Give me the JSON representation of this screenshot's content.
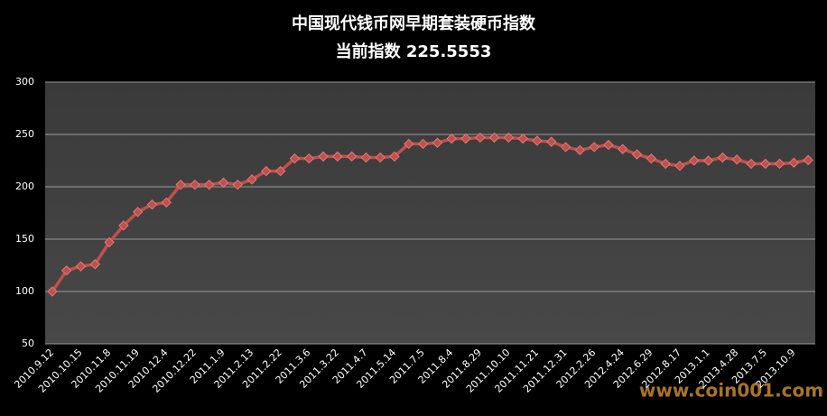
{
  "chart_data": {
    "type": "line",
    "title": "中国现代钱币网早期套装硬币指数",
    "subtitle": "当前指数 225.5553",
    "watermark": "www.coin001.com",
    "categories": [
      "2010.9.12",
      null,
      "2010.10.15",
      null,
      "2010.11.8",
      null,
      "2010.11.19",
      null,
      "2010.12.4",
      null,
      "2010.12.22",
      null,
      "2011.1.9",
      null,
      "2011.2.13",
      null,
      "2011.2.22",
      null,
      "2011.3.6",
      null,
      "2011.3.22",
      null,
      "2011.4.7",
      null,
      "2011.5.14",
      null,
      "2011.7.5",
      null,
      "2011.8.4",
      null,
      "2011.8.29",
      null,
      "2011.10.10",
      null,
      "2011.11.21",
      null,
      "2011.12.31",
      null,
      "2012.2.26",
      null,
      "2012.4.24",
      null,
      "2012.6.29",
      null,
      "2012.8.17",
      null,
      "2013.1.1",
      null,
      "2013.4.28",
      null,
      "2013.7.5",
      null,
      "2013.10.9",
      null
    ],
    "series": [
      {
        "name": "指数",
        "color": "#c0504d",
        "values": [
          100,
          120,
          124,
          126,
          147,
          163,
          176,
          183,
          185,
          202,
          202,
          202,
          204,
          202,
          207,
          215,
          215,
          227,
          227,
          229,
          229,
          229,
          228,
          228,
          229,
          241,
          241,
          242,
          246,
          246,
          247,
          247,
          247,
          246,
          244,
          243,
          238,
          235,
          238,
          240,
          236,
          231,
          227,
          222,
          220,
          225,
          225,
          228,
          226,
          222,
          222,
          222,
          223,
          225.5553
        ]
      }
    ],
    "ylim": [
      50,
      300
    ],
    "yticks": [
      50,
      100,
      150,
      200,
      250,
      300
    ],
    "grid": true
  }
}
